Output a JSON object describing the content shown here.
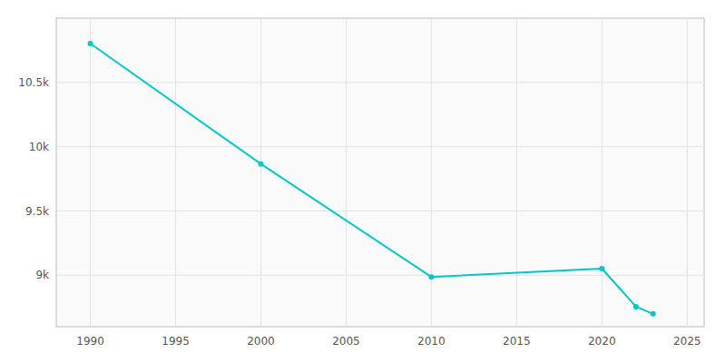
{
  "chart_data": {
    "type": "line",
    "x": [
      1990,
      2000,
      2010,
      2020,
      2022,
      2023
    ],
    "values": [
      10802,
      9866,
      8987,
      9052,
      8756,
      8700
    ],
    "color": "#00C8C8",
    "marker": "circle",
    "xlim": [
      1988,
      2026
    ],
    "xticks": [
      1990,
      1995,
      2000,
      2005,
      2010,
      2015,
      2020,
      2025
    ],
    "ylim": [
      8600,
      11000
    ],
    "yticks": [
      {
        "value": 9000,
        "label": "9k"
      },
      {
        "value": 9500,
        "label": "9.5k"
      },
      {
        "value": 10000,
        "label": "10k"
      },
      {
        "value": 10500,
        "label": "10.5k"
      }
    ],
    "grid": true
  }
}
